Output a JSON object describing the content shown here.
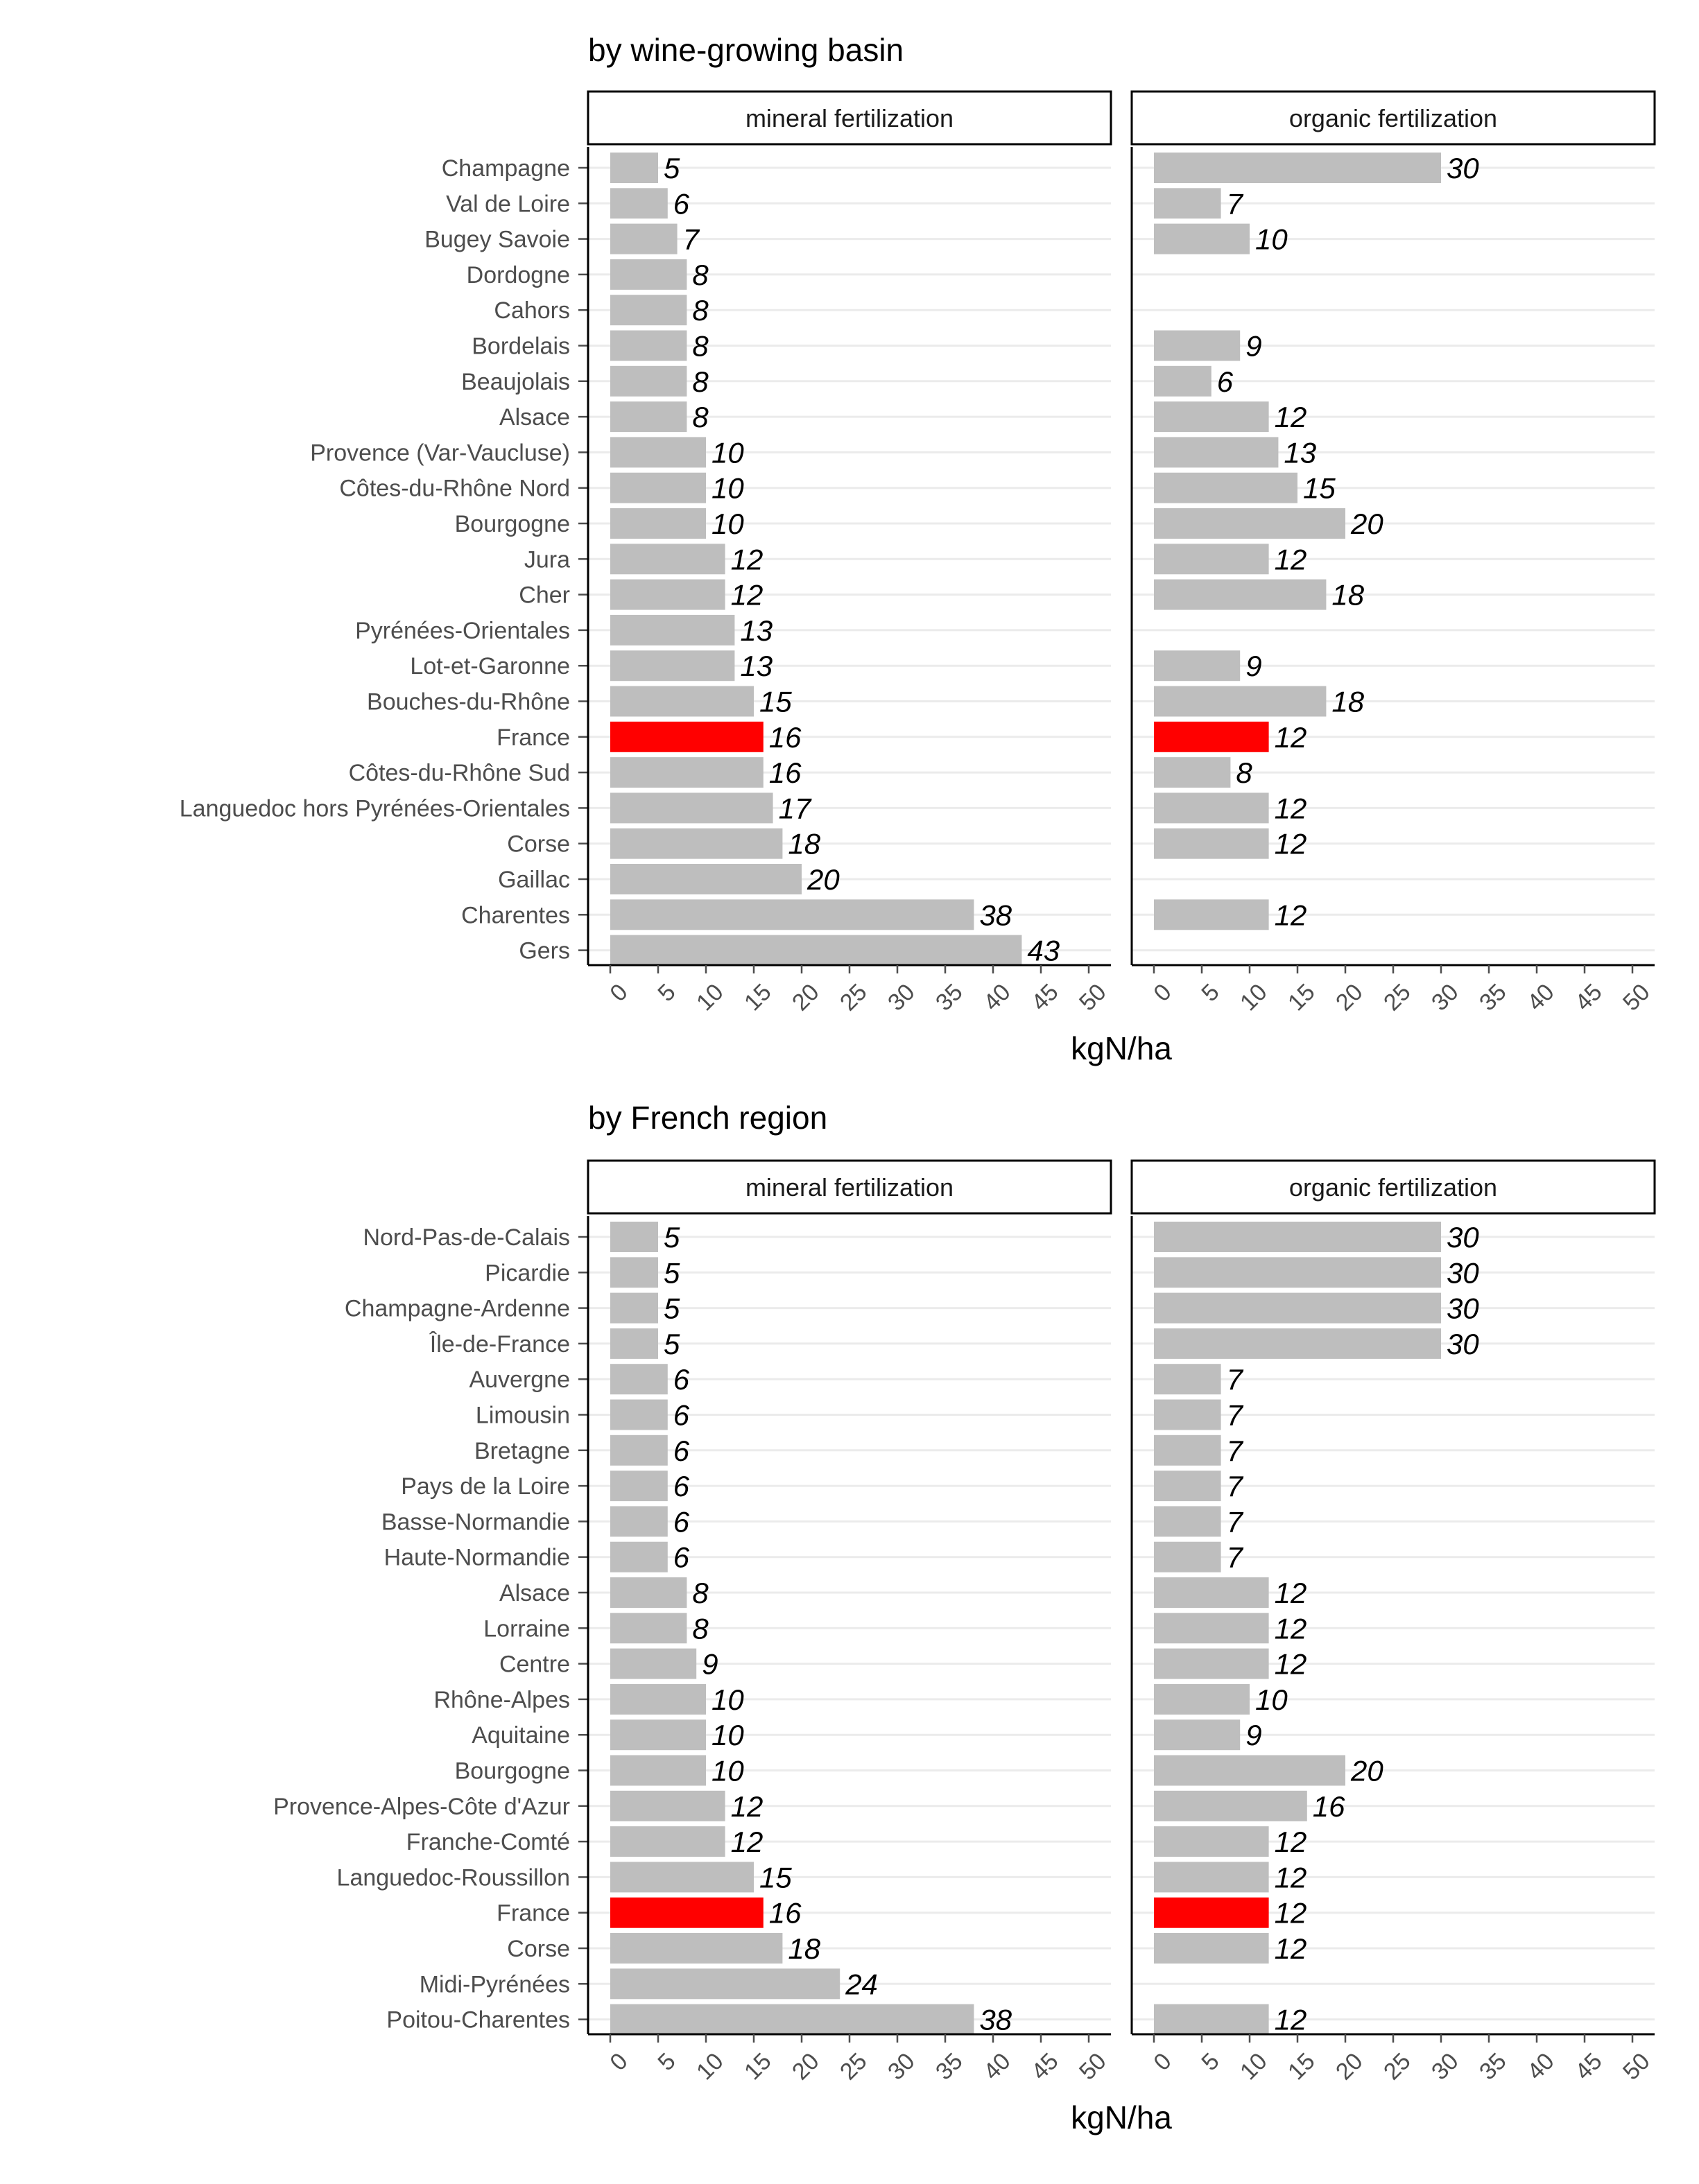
{
  "colors": {
    "bar": "#bebebe",
    "highlight": "#ff0000",
    "grid": "#ebebeb",
    "axis": "#000000",
    "tick_text": "#4d4d4d",
    "label_text": "#000000"
  },
  "chart_data": [
    {
      "type": "bar",
      "orientation": "horizontal",
      "title": "by wine-growing basin",
      "xlabel": "kgN/ha",
      "xlim": [
        0,
        50
      ],
      "x_ticks": [
        "0",
        "5",
        "10",
        "15",
        "20",
        "25",
        "30",
        "35",
        "40",
        "45",
        "50"
      ],
      "highlight_category": "France",
      "grid": "major horizontal",
      "facets": [
        "mineral fertilization",
        "organic fertilization"
      ],
      "categories": [
        "Champagne",
        "Val de Loire",
        "Bugey Savoie",
        "Dordogne",
        "Cahors",
        "Bordelais",
        "Beaujolais",
        "Alsace",
        "Provence (Var-Vaucluse)",
        "Côtes-du-Rhône Nord",
        "Bourgogne",
        "Jura",
        "Cher",
        "Pyrénées-Orientales",
        "Lot-et-Garonne",
        "Bouches-du-Rhône",
        "France",
        "Côtes-du-Rhône Sud",
        "Languedoc hors Pyrénées-Orientales",
        "Corse",
        "Gaillac",
        "Charentes",
        "Gers"
      ],
      "series": [
        {
          "name": "mineral fertilization",
          "values": [
            5,
            6,
            7,
            8,
            8,
            8,
            8,
            8,
            10,
            10,
            10,
            12,
            12,
            13,
            13,
            15,
            16,
            16,
            17,
            18,
            20,
            38,
            43
          ]
        },
        {
          "name": "organic fertilization",
          "values": [
            30,
            7,
            10,
            null,
            null,
            9,
            6,
            12,
            13,
            15,
            20,
            12,
            18,
            null,
            9,
            18,
            12,
            8,
            12,
            12,
            null,
            12,
            null
          ]
        }
      ]
    },
    {
      "type": "bar",
      "orientation": "horizontal",
      "title": "by French region",
      "xlabel": "kgN/ha",
      "xlim": [
        0,
        50
      ],
      "x_ticks": [
        "0",
        "5",
        "10",
        "15",
        "20",
        "25",
        "30",
        "35",
        "40",
        "45",
        "50"
      ],
      "highlight_category": "France",
      "grid": "major horizontal",
      "facets": [
        "mineral fertilization",
        "organic fertilization"
      ],
      "categories": [
        "Nord-Pas-de-Calais",
        "Picardie",
        "Champagne-Ardenne",
        "Île-de-France",
        "Auvergne",
        "Limousin",
        "Bretagne",
        "Pays de la Loire",
        "Basse-Normandie",
        "Haute-Normandie",
        "Alsace",
        "Lorraine",
        "Centre",
        "Rhône-Alpes",
        "Aquitaine",
        "Bourgogne",
        "Provence-Alpes-Côte d'Azur",
        "Franche-Comté",
        "Languedoc-Roussillon",
        "France",
        "Corse",
        "Midi-Pyrénées",
        "Poitou-Charentes"
      ],
      "series": [
        {
          "name": "mineral fertilization",
          "values": [
            5,
            5,
            5,
            5,
            6,
            6,
            6,
            6,
            6,
            6,
            8,
            8,
            9,
            10,
            10,
            10,
            12,
            12,
            15,
            16,
            18,
            24,
            38
          ]
        },
        {
          "name": "organic fertilization",
          "values": [
            30,
            30,
            30,
            30,
            7,
            7,
            7,
            7,
            7,
            7,
            12,
            12,
            12,
            10,
            9,
            20,
            16,
            12,
            12,
            12,
            12,
            null,
            12
          ]
        }
      ]
    }
  ]
}
